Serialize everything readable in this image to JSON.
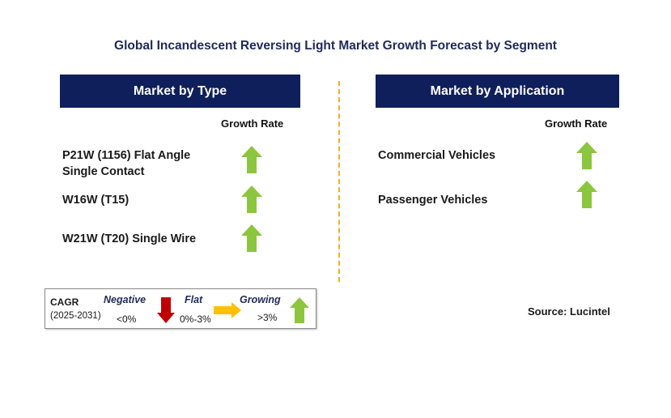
{
  "title": "Global Incandescent Reversing Light Market Growth Forecast by Segment",
  "left_panel": {
    "header": "Market by Type",
    "growth_rate_label": "Growth Rate",
    "items": [
      {
        "label_line1": "P21W (1156) Flat Angle",
        "label_line2": "Single Contact",
        "trend": "growing"
      },
      {
        "label_line1": "W16W (T15)",
        "label_line2": "",
        "trend": "growing"
      },
      {
        "label_line1": "W21W (T20) Single Wire",
        "label_line2": "",
        "trend": "growing"
      }
    ]
  },
  "right_panel": {
    "header": "Market by Application",
    "growth_rate_label": "Growth Rate",
    "items": [
      {
        "label": "Commercial Vehicles",
        "trend": "growing"
      },
      {
        "label": "Passenger Vehicles",
        "trend": "growing"
      }
    ]
  },
  "legend": {
    "cagr_label": "CAGR",
    "period": "(2025-2031)",
    "negative_label": "Negative",
    "negative_range": "<0%",
    "flat_label": "Flat",
    "flat_range": "0%-3%",
    "growing_label": "Growing",
    "growing_range": ">3%"
  },
  "source": "Source: Lucintel",
  "colors": {
    "header_bg": "#0f1f5c",
    "title_text": "#1f2a5a",
    "divider": "#f2b01e",
    "growing_arrow": "#8cc63f",
    "negative_arrow": "#c00000",
    "flat_arrow": "#ffc000"
  },
  "icons": {
    "growing": "up-arrow-icon",
    "negative": "down-arrow-icon",
    "flat": "right-arrow-icon"
  }
}
